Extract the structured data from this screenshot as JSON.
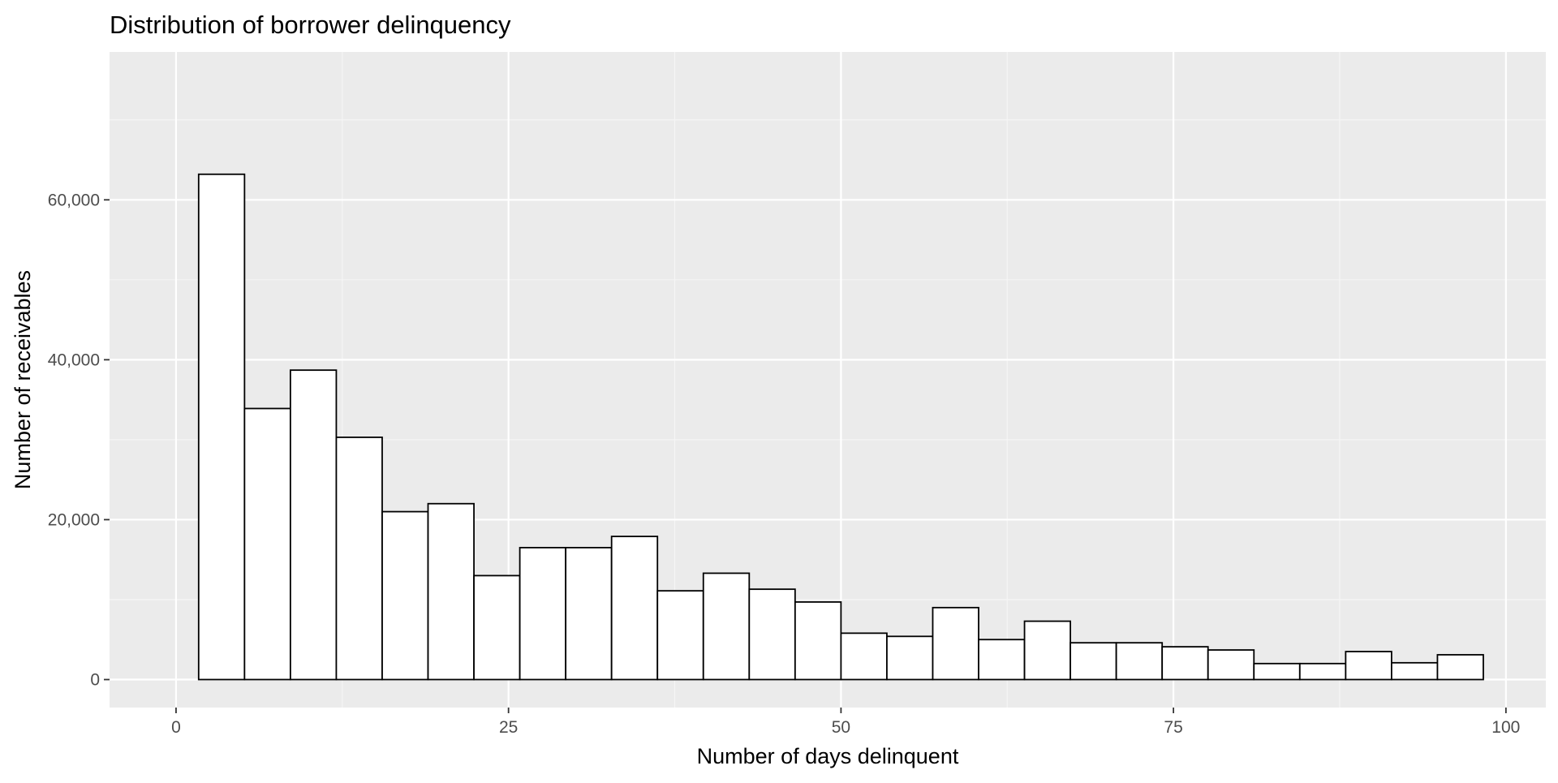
{
  "chart_data": {
    "type": "bar",
    "title": "Distribution of borrower delinquency",
    "xlabel": "Number of days delinquent",
    "ylabel": "Number of receivables",
    "xlim": [
      -5,
      103
    ],
    "ylim": [
      -3500,
      78500
    ],
    "x_ticks": [
      0,
      25,
      50,
      75,
      100
    ],
    "x_tick_labels": [
      "0",
      "25",
      "50",
      "75",
      "100"
    ],
    "y_ticks": [
      0,
      20000,
      40000,
      60000
    ],
    "y_tick_labels": [
      "0",
      "20,000",
      "40,000",
      "60,000"
    ],
    "grid": true,
    "legend": "none",
    "bin_width": 3.45,
    "bins": [
      {
        "x0": 1.7,
        "x1": 5.15,
        "value": 63200
      },
      {
        "x0": 5.15,
        "x1": 8.6,
        "value": 33900
      },
      {
        "x0": 8.6,
        "x1": 12.05,
        "value": 38700
      },
      {
        "x0": 12.05,
        "x1": 15.5,
        "value": 30300
      },
      {
        "x0": 15.5,
        "x1": 18.95,
        "value": 21000
      },
      {
        "x0": 18.95,
        "x1": 22.4,
        "value": 22000
      },
      {
        "x0": 22.4,
        "x1": 25.85,
        "value": 13000
      },
      {
        "x0": 25.85,
        "x1": 29.3,
        "value": 16500
      },
      {
        "x0": 29.3,
        "x1": 32.75,
        "value": 16500
      },
      {
        "x0": 32.75,
        "x1": 36.2,
        "value": 17900
      },
      {
        "x0": 36.2,
        "x1": 39.65,
        "value": 11100
      },
      {
        "x0": 39.65,
        "x1": 43.1,
        "value": 13300
      },
      {
        "x0": 43.1,
        "x1": 46.55,
        "value": 11300
      },
      {
        "x0": 46.55,
        "x1": 50.0,
        "value": 9700
      },
      {
        "x0": 50.0,
        "x1": 53.45,
        "value": 5800
      },
      {
        "x0": 53.45,
        "x1": 56.9,
        "value": 5400
      },
      {
        "x0": 56.9,
        "x1": 60.35,
        "value": 9000
      },
      {
        "x0": 60.35,
        "x1": 63.8,
        "value": 5000
      },
      {
        "x0": 63.8,
        "x1": 67.25,
        "value": 7300
      },
      {
        "x0": 67.25,
        "x1": 70.7,
        "value": 4600
      },
      {
        "x0": 70.7,
        "x1": 74.15,
        "value": 4600
      },
      {
        "x0": 74.15,
        "x1": 77.6,
        "value": 4100
      },
      {
        "x0": 77.6,
        "x1": 81.05,
        "value": 3700
      },
      {
        "x0": 81.05,
        "x1": 84.5,
        "value": 2000
      },
      {
        "x0": 84.5,
        "x1": 87.95,
        "value": 2000
      },
      {
        "x0": 87.95,
        "x1": 91.4,
        "value": 3500
      },
      {
        "x0": 91.4,
        "x1": 94.85,
        "value": 2100
      },
      {
        "x0": 94.85,
        "x1": 98.3,
        "value": 3100
      }
    ],
    "colors": {
      "panel_background": "#ebebeb",
      "grid_major": "#ffffff",
      "grid_minor": "#f5f5f5",
      "bar_fill": "#ffffff",
      "bar_stroke": "#000000",
      "tick_color": "#333333",
      "tick_label_color": "#4d4d4d"
    }
  }
}
